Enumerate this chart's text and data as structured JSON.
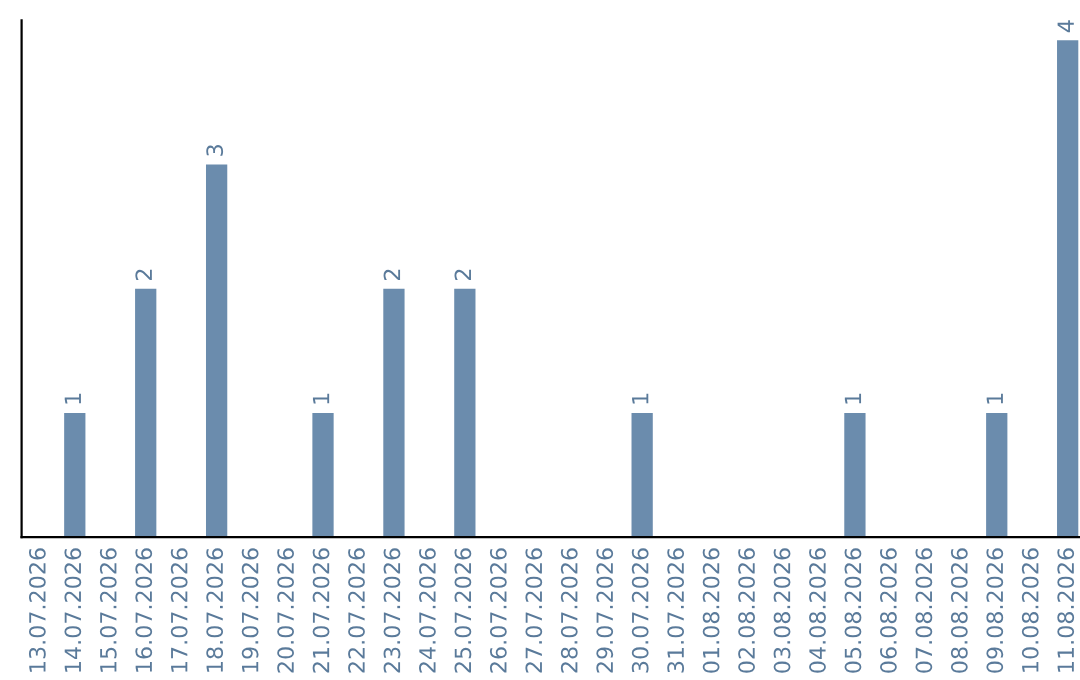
{
  "chart_data": {
    "type": "bar",
    "categories": [
      "13.07.2026",
      "14.07.2026",
      "15.07.2026",
      "16.07.2026",
      "17.07.2026",
      "18.07.2026",
      "19.07.2026",
      "20.07.2026",
      "21.07.2026",
      "22.07.2026",
      "23.07.2026",
      "24.07.2026",
      "25.07.2026",
      "26.07.2026",
      "27.07.2026",
      "28.07.2026",
      "29.07.2026",
      "30.07.2026",
      "31.07.2026",
      "01.08.2026",
      "02.08.2026",
      "03.08.2026",
      "04.08.2026",
      "05.08.2026",
      "06.08.2026",
      "07.08.2026",
      "08.08.2026",
      "09.08.2026",
      "10.08.2026",
      "11.08.2026"
    ],
    "values": [
      0,
      1,
      0,
      2,
      0,
      3,
      0,
      0,
      1,
      0,
      2,
      0,
      2,
      0,
      0,
      0,
      0,
      1,
      0,
      0,
      0,
      0,
      0,
      1,
      0,
      0,
      0,
      1,
      0,
      4
    ],
    "value_labels": [
      null,
      "1",
      null,
      "2",
      null,
      "3",
      null,
      null,
      "1",
      null,
      "2",
      null,
      "2",
      null,
      null,
      null,
      null,
      "1",
      null,
      null,
      null,
      null,
      null,
      "1",
      null,
      null,
      null,
      "1",
      null,
      "4"
    ],
    "color": "#6b8cad",
    "tick_labels": "x",
    "grid": false,
    "legend": false
  }
}
